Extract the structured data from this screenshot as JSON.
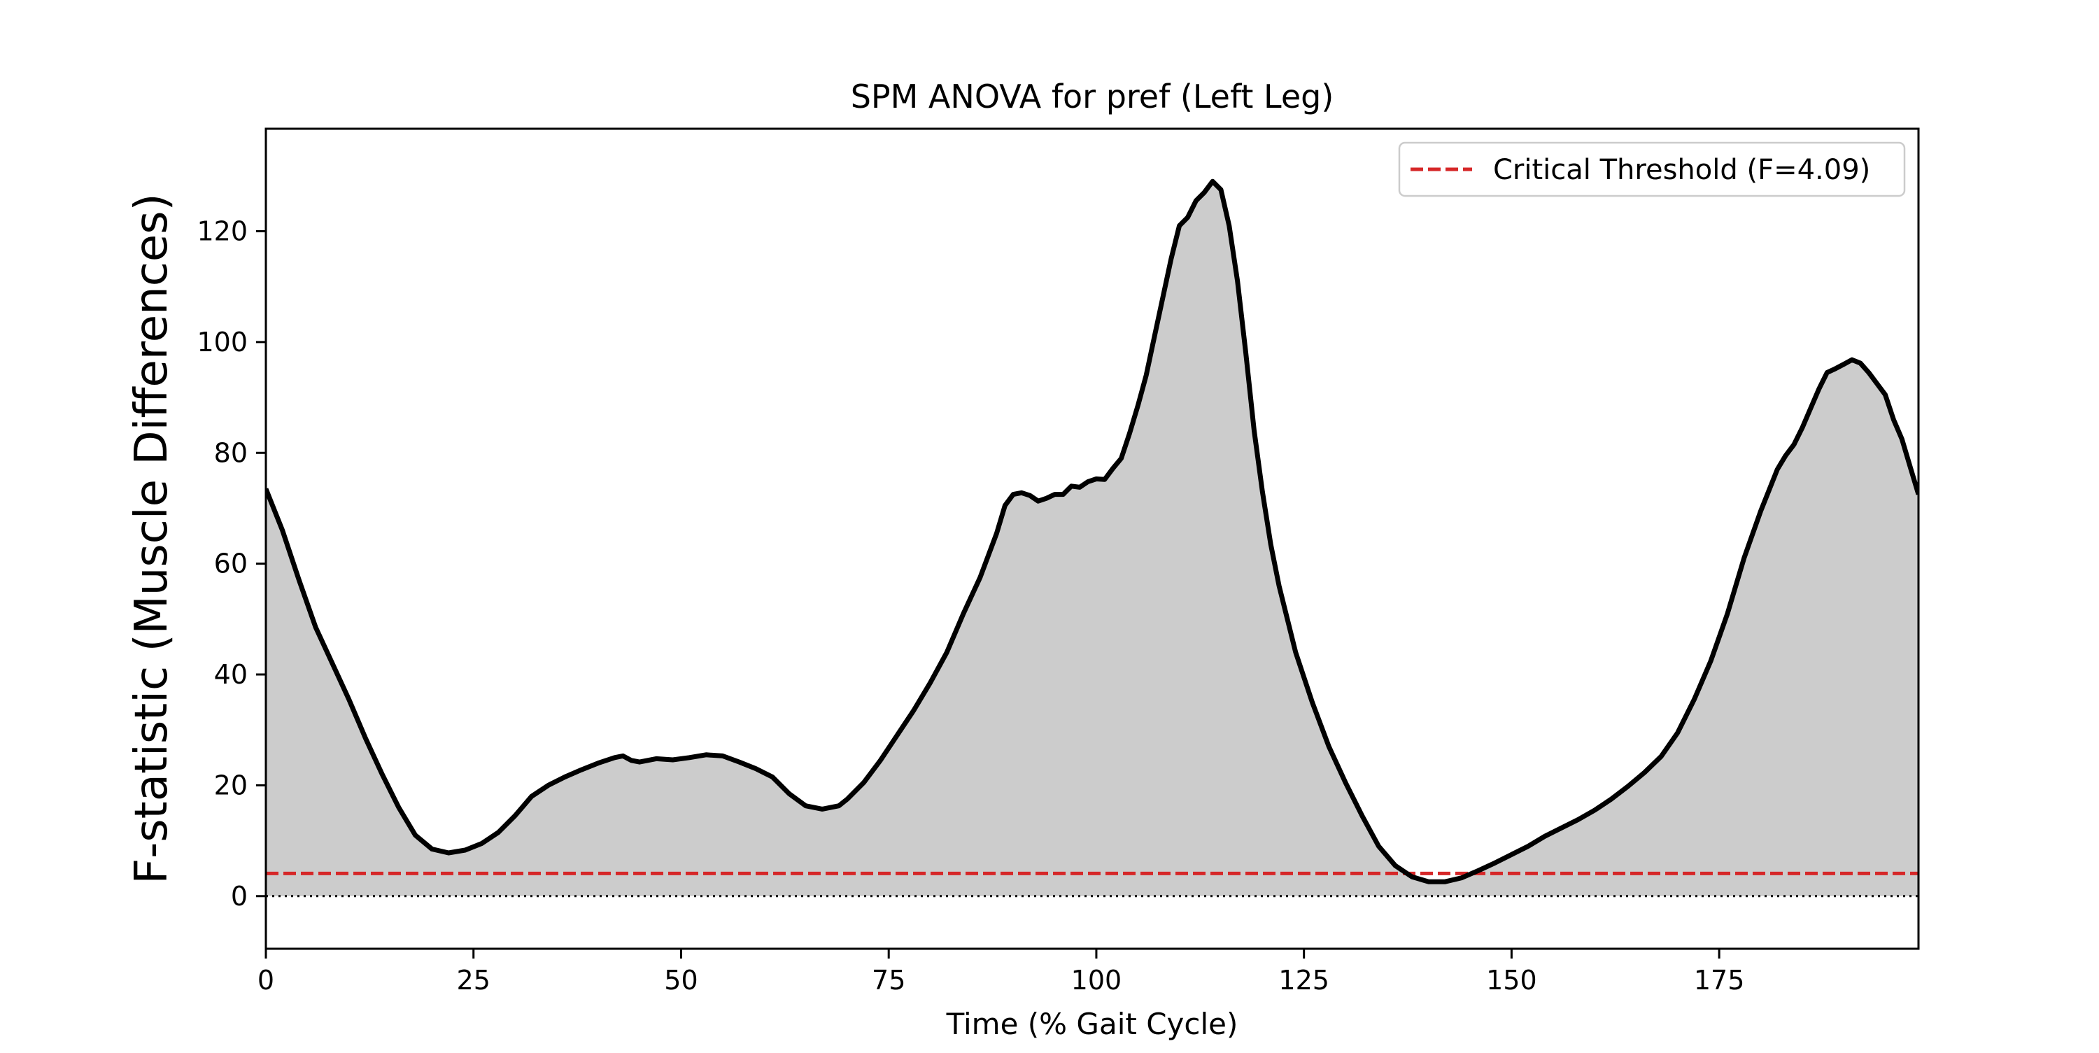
{
  "chart_data": {
    "type": "area",
    "title": "SPM ANOVA for pref (Left Leg)",
    "xlabel": "Time (% Gait Cycle)",
    "ylabel": "F-statistic (Muscle Differences)",
    "xlim": [
      0,
      199
    ],
    "ylim": [
      -9.5,
      138.5
    ],
    "x_ticks": [
      0,
      25,
      50,
      75,
      100,
      125,
      150,
      175
    ],
    "y_ticks": [
      0,
      20,
      40,
      60,
      80,
      100,
      120
    ],
    "grid": false,
    "legend_position": "top-right",
    "colors": {
      "fill": "#cccccc",
      "line": "#000000",
      "threshold": "#d62728",
      "zero_line": "#000000"
    },
    "series": [
      {
        "values": [
          [
            0,
            73.5
          ],
          [
            2,
            66
          ],
          [
            4,
            57
          ],
          [
            6,
            48.5
          ],
          [
            8,
            42
          ],
          [
            10,
            35.5
          ],
          [
            12,
            28.5
          ],
          [
            14,
            22
          ],
          [
            16,
            16
          ],
          [
            18,
            11
          ],
          [
            20,
            8.5
          ],
          [
            22,
            7.8
          ],
          [
            24,
            8.3
          ],
          [
            26,
            9.5
          ],
          [
            28,
            11.5
          ],
          [
            30,
            14.5
          ],
          [
            32,
            18
          ],
          [
            34,
            20
          ],
          [
            36,
            21.5
          ],
          [
            38,
            22.8
          ],
          [
            40,
            24
          ],
          [
            42,
            25
          ],
          [
            43,
            25.3
          ],
          [
            44,
            24.5
          ],
          [
            45,
            24.2
          ],
          [
            47,
            24.8
          ],
          [
            49,
            24.6
          ],
          [
            51,
            25
          ],
          [
            53,
            25.5
          ],
          [
            55,
            25.3
          ],
          [
            57,
            24.2
          ],
          [
            59,
            23
          ],
          [
            61,
            21.5
          ],
          [
            63,
            18.5
          ],
          [
            65,
            16.3
          ],
          [
            67,
            15.7
          ],
          [
            69,
            16.3
          ],
          [
            70,
            17.5
          ],
          [
            72,
            20.5
          ],
          [
            74,
            24.5
          ],
          [
            76,
            29
          ],
          [
            78,
            33.5
          ],
          [
            80,
            38.5
          ],
          [
            82,
            44
          ],
          [
            84,
            51
          ],
          [
            86,
            57.5
          ],
          [
            88,
            65.5
          ],
          [
            89,
            70.5
          ],
          [
            90,
            72.5
          ],
          [
            91,
            72.8
          ],
          [
            92,
            72.3
          ],
          [
            93,
            71.3
          ],
          [
            94,
            71.8
          ],
          [
            95,
            72.5
          ],
          [
            96,
            72.5
          ],
          [
            97,
            74
          ],
          [
            98,
            73.8
          ],
          [
            99,
            74.8
          ],
          [
            100,
            75.3
          ],
          [
            101,
            75.2
          ],
          [
            102,
            77.2
          ],
          [
            103,
            79
          ],
          [
            104,
            83.5
          ],
          [
            105,
            88.5
          ],
          [
            106,
            94
          ],
          [
            107,
            101
          ],
          [
            108,
            108
          ],
          [
            109,
            115
          ],
          [
            110,
            121
          ],
          [
            111,
            122.5
          ],
          [
            112,
            125.5
          ],
          [
            113,
            127
          ],
          [
            114,
            129
          ],
          [
            115,
            127.5
          ],
          [
            116,
            121
          ],
          [
            117,
            111
          ],
          [
            118,
            98
          ],
          [
            119,
            84
          ],
          [
            120,
            73
          ],
          [
            121,
            63.5
          ],
          [
            122,
            56
          ],
          [
            124,
            44
          ],
          [
            126,
            35
          ],
          [
            128,
            27
          ],
          [
            130,
            20.5
          ],
          [
            132,
            14.5
          ],
          [
            134,
            9
          ],
          [
            136,
            5.5
          ],
          [
            138,
            3.5
          ],
          [
            140,
            2.6
          ],
          [
            142,
            2.6
          ],
          [
            144,
            3.3
          ],
          [
            146,
            4.6
          ],
          [
            148,
            6
          ],
          [
            150,
            7.5
          ],
          [
            152,
            9
          ],
          [
            154,
            10.8
          ],
          [
            156,
            12.3
          ],
          [
            158,
            13.8
          ],
          [
            160,
            15.5
          ],
          [
            162,
            17.5
          ],
          [
            164,
            19.8
          ],
          [
            166,
            22.3
          ],
          [
            168,
            25.2
          ],
          [
            170,
            29.5
          ],
          [
            172,
            35.5
          ],
          [
            174,
            42.5
          ],
          [
            176,
            51
          ],
          [
            178,
            61
          ],
          [
            180,
            69.5
          ],
          [
            182,
            77
          ],
          [
            183,
            79.5
          ],
          [
            184,
            81.5
          ],
          [
            185,
            84.5
          ],
          [
            186,
            88
          ],
          [
            187,
            91.5
          ],
          [
            188,
            94.5
          ],
          [
            189,
            95.2
          ],
          [
            190,
            96
          ],
          [
            191,
            96.8
          ],
          [
            192,
            96.2
          ],
          [
            193,
            94.5
          ],
          [
            194,
            92.5
          ],
          [
            195,
            90.5
          ],
          [
            196,
            86
          ],
          [
            197,
            82.5
          ],
          [
            198,
            77.5
          ],
          [
            199,
            72.5
          ]
        ]
      },
      {
        "name": "Critical Threshold (F=4.09)",
        "type": "hline",
        "value": 4.09,
        "style": "dashed"
      },
      {
        "type": "hline",
        "value": 0,
        "style": "dotted"
      }
    ]
  }
}
